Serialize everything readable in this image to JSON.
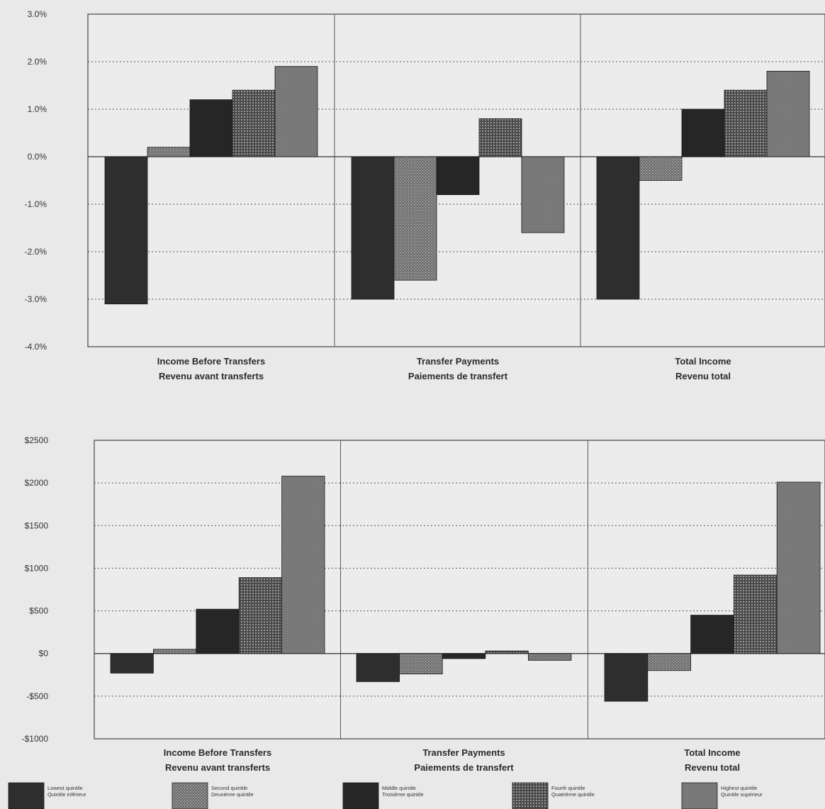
{
  "chart_data": [
    {
      "type": "bar",
      "categories": [
        [
          "Income Before Transfers",
          "Revenu avant transferts"
        ],
        [
          "Transfer Payments",
          "Paiements de transfert"
        ],
        [
          "Total Income",
          "Revenu total"
        ]
      ],
      "ylim": [
        -4.0,
        3.0
      ],
      "yticks": [
        -4.0,
        -3.0,
        -2.0,
        -1.0,
        0.0,
        1.0,
        2.0,
        3.0
      ],
      "ytick_labels": [
        "-4.0%",
        "-3.0%",
        "-2.0%",
        "-1.0%",
        "0.0%",
        "1.0%",
        "2.0%",
        "3.0%"
      ],
      "grid": true,
      "series": [
        {
          "name": "Lowest quintile / Quintile inférieur",
          "values": [
            -3.1,
            -3.0,
            -3.0
          ]
        },
        {
          "name": "Second quintile / Deuxième quintile",
          "values": [
            0.2,
            -2.6,
            -0.5
          ]
        },
        {
          "name": "Middle quintile / Troisième quintile",
          "values": [
            1.2,
            -0.8,
            1.0
          ]
        },
        {
          "name": "Fourth quintile / Quatrième quintile",
          "values": [
            1.4,
            0.8,
            1.4
          ]
        },
        {
          "name": "Highest quintile / Quintile supérieur",
          "values": [
            1.9,
            -1.6,
            1.8
          ]
        }
      ]
    },
    {
      "type": "bar",
      "categories": [
        [
          "Income Before Transfers",
          "Revenu avant transferts"
        ],
        [
          "Transfer Payments",
          "Paiements de transfert"
        ],
        [
          "Total Income",
          "Revenu total"
        ]
      ],
      "ylim": [
        -1000,
        2500
      ],
      "yticks": [
        -1000,
        -500,
        0,
        500,
        1000,
        1500,
        2000,
        2500
      ],
      "ytick_labels": [
        "-$1000",
        "-$500",
        "$0",
        "$500",
        "$1000",
        "$1500",
        "$2000",
        "$2500"
      ],
      "grid": true,
      "series": [
        {
          "name": "Lowest quintile / Quintile inférieur",
          "values": [
            -230,
            -330,
            -560
          ]
        },
        {
          "name": "Second quintile / Deuxième quintile",
          "values": [
            50,
            -240,
            -200
          ]
        },
        {
          "name": "Middle quintile / Troisième quintile",
          "values": [
            520,
            -60,
            450
          ]
        },
        {
          "name": "Fourth quintile / Quatrième quintile",
          "values": [
            890,
            30,
            920
          ]
        },
        {
          "name": "Highest quintile / Quintile supérieur",
          "values": [
            2080,
            -80,
            2010
          ]
        }
      ]
    }
  ],
  "legend": [
    {
      "line1": "Lowest quintile",
      "line2": "Quintile inférieur",
      "color": "#2e2e2e",
      "pattern": "solid"
    },
    {
      "line1": "Second quintile",
      "line2": "Deuxième quintile",
      "color": "#6e6e6e",
      "pattern": "dots"
    },
    {
      "line1": "Middle quintile",
      "line2": "Troisième quintile",
      "color": "#262626",
      "pattern": "solid"
    },
    {
      "line1": "Fourth quintile",
      "line2": "Quatrième quintile",
      "color": "#4a4a4a",
      "pattern": "grid"
    },
    {
      "line1": "Highest quintile",
      "line2": "Quintile supérieur",
      "color": "#767676",
      "pattern": "fine"
    }
  ]
}
